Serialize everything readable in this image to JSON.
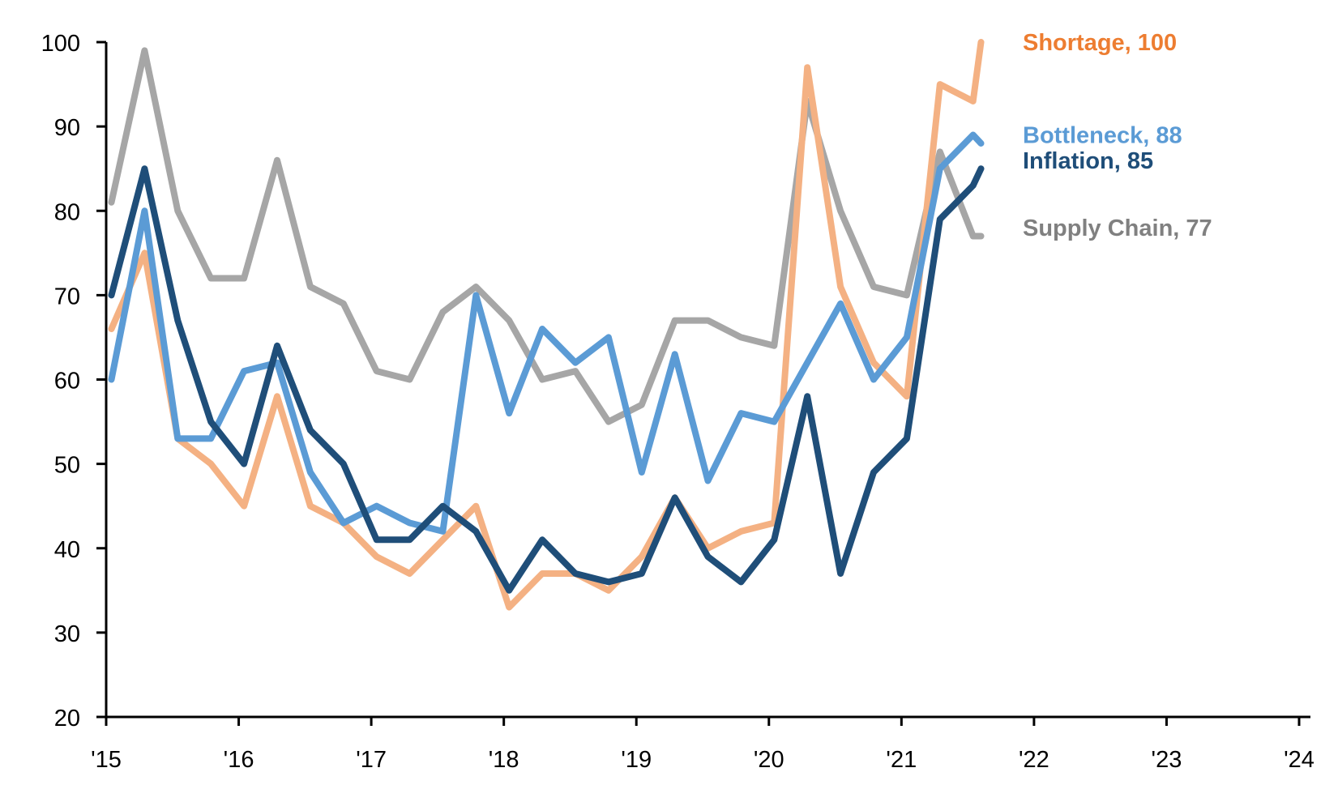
{
  "chart_data": {
    "type": "line",
    "title": "",
    "xlabel": "",
    "ylabel": "",
    "ylim": [
      20,
      100
    ],
    "yticks": [
      20,
      30,
      40,
      50,
      60,
      70,
      80,
      90,
      100
    ],
    "xlim": [
      2015,
      2024
    ],
    "xticks": [
      2015,
      2016,
      2017,
      2018,
      2019,
      2020,
      2021,
      2022,
      2023,
      2024
    ],
    "xtick_labels": [
      "'15",
      "'16",
      "'17",
      "'18",
      "'19",
      "'20",
      "'21",
      "'22",
      "'23",
      "'24"
    ],
    "grid": false,
    "legend": "direct labels at line ends (right)",
    "x": [
      2015.04,
      2015.29,
      2015.54,
      2015.79,
      2016.04,
      2016.29,
      2016.54,
      2016.79,
      2017.04,
      2017.29,
      2017.54,
      2017.79,
      2018.04,
      2018.29,
      2018.54,
      2018.79,
      2019.04,
      2019.29,
      2019.54,
      2019.79,
      2020.04,
      2020.29,
      2020.54,
      2020.79,
      2021.04,
      2021.29,
      2021.54,
      2021.6
    ],
    "series": [
      {
        "name": "Supply Chain",
        "label": "Supply Chain, 77",
        "line_color": "#a6a6a6",
        "label_color": "#808080",
        "values": [
          81,
          99,
          80,
          72,
          72,
          86,
          71,
          69,
          61,
          60,
          68,
          71,
          67,
          60,
          61,
          55,
          57,
          67,
          67,
          65,
          64,
          93,
          80,
          71,
          70,
          87,
          77,
          77
        ]
      },
      {
        "name": "Shortage",
        "label": "Shortage, 100",
        "line_color": "#f4b183",
        "label_color": "#ed7d31",
        "values": [
          66,
          75,
          53,
          50,
          45,
          58,
          45,
          43,
          39,
          37,
          41,
          45,
          33,
          37,
          37,
          35,
          39,
          46,
          40,
          42,
          43,
          97,
          71,
          62,
          58,
          95,
          93,
          100
        ]
      },
      {
        "name": "Bottleneck",
        "label": "Bottleneck, 88",
        "line_color": "#5b9bd5",
        "label_color": "#5b9bd5",
        "values": [
          60,
          80,
          53,
          53,
          61,
          62,
          49,
          43,
          45,
          43,
          42,
          70,
          56,
          66,
          62,
          65,
          49,
          63,
          48,
          56,
          55,
          62,
          69,
          60,
          65,
          85,
          89,
          88
        ]
      },
      {
        "name": "Inflation",
        "label": "Inflation, 85",
        "line_color": "#1f4e79",
        "label_color": "#1f4e79",
        "values": [
          70,
          85,
          67,
          55,
          50,
          64,
          54,
          50,
          41,
          41,
          45,
          42,
          35,
          41,
          37,
          36,
          37,
          46,
          39,
          36,
          41,
          58,
          37,
          49,
          53,
          79,
          83,
          85
        ]
      }
    ]
  }
}
